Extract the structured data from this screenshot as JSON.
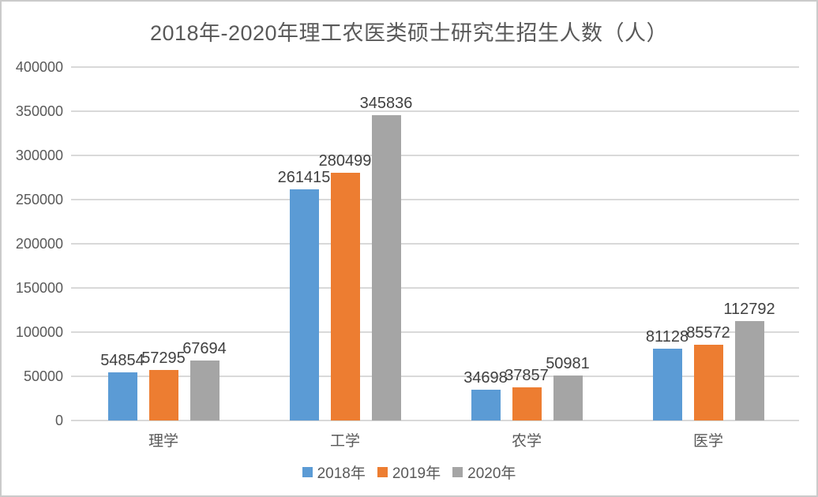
{
  "chart_data": {
    "type": "bar",
    "title": "2018年-2020年理工农医类硕士研究生招生人数（人）",
    "categories": [
      "理学",
      "工学",
      "农学",
      "医学"
    ],
    "series": [
      {
        "name": "2018年",
        "color": "#5B9BD5",
        "values": [
          54854,
          261415,
          34698,
          81128
        ]
      },
      {
        "name": "2019年",
        "color": "#ED7D31",
        "values": [
          57295,
          280499,
          37857,
          85572
        ]
      },
      {
        "name": "2020年",
        "color": "#A5A5A5",
        "values": [
          67694,
          345836,
          50981,
          112792
        ]
      }
    ],
    "xlabel": "",
    "ylabel": "",
    "ylim": [
      0,
      400000
    ],
    "yticks": [
      0,
      50000,
      100000,
      150000,
      200000,
      250000,
      300000,
      350000,
      400000
    ],
    "grid": true,
    "legend_position": "bottom",
    "data_labels": true
  },
  "colors": {
    "background": "#FFFFFF",
    "frame_border": "#CBCBCB",
    "gridline": "#D9D9D9",
    "title_text": "#595959",
    "axis_text": "#595959",
    "data_label_text": "#404040"
  }
}
